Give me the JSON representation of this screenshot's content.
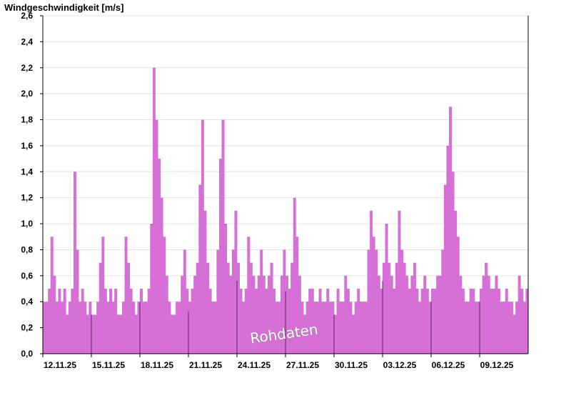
{
  "chart_data": {
    "type": "bar",
    "title": "Windgeschwindigkeit [m/s]",
    "ylabel": "Windgeschwindigkeit [m/s]",
    "ylim": [
      0,
      2.6
    ],
    "y_ticks": [
      {
        "value": 0.0,
        "label": "0,0"
      },
      {
        "value": 0.2,
        "label": "0,2"
      },
      {
        "value": 0.4,
        "label": "0,4"
      },
      {
        "value": 0.6,
        "label": "0,6"
      },
      {
        "value": 0.8,
        "label": "0,8"
      },
      {
        "value": 1.0,
        "label": "1,0"
      },
      {
        "value": 1.2,
        "label": "1,2"
      },
      {
        "value": 1.4,
        "label": "1,4"
      },
      {
        "value": 1.6,
        "label": "1,6"
      },
      {
        "value": 1.8,
        "label": "1,8"
      },
      {
        "value": 2.0,
        "label": "2,0"
      },
      {
        "value": 2.2,
        "label": "2,2"
      },
      {
        "value": 2.4,
        "label": "2,4"
      },
      {
        "value": 2.6,
        "label": "2,6"
      }
    ],
    "x_range_days": [
      0,
      30
    ],
    "x_ticks": [
      "12.11.25",
      "15.11.25",
      "18.11.25",
      "21.11.25",
      "24.11.25",
      "27.11.25",
      "30.11.25",
      "03.12.25",
      "06.12.25",
      "09.12.25"
    ],
    "grid": true,
    "watermark": "Rohdaten",
    "colors": {
      "bars": "#d66fd6",
      "grid": "#e4e4e4",
      "axis": "#000000",
      "day_marker": "#5a2a5a"
    },
    "series_values": [
      0.4,
      0.4,
      0.5,
      0.9,
      0.6,
      0.4,
      0.5,
      0.4,
      0.5,
      0.3,
      0.4,
      0.5,
      1.4,
      0.8,
      0.4,
      0.5,
      0.4,
      0.3,
      0.4,
      0.3,
      0.3,
      0.4,
      0.7,
      0.9,
      0.5,
      0.4,
      0.5,
      0.4,
      0.5,
      0.3,
      0.3,
      0.4,
      0.9,
      0.7,
      0.5,
      0.4,
      0.3,
      0.4,
      0.5,
      0.4,
      0.4,
      0.5,
      1.0,
      2.2,
      1.8,
      1.5,
      1.2,
      0.9,
      0.6,
      0.4,
      0.3,
      0.3,
      0.4,
      0.4,
      0.6,
      0.8,
      0.5,
      0.4,
      0.5,
      0.6,
      0.7,
      1.3,
      1.8,
      1.1,
      0.7,
      0.5,
      0.4,
      0.4,
      0.8,
      1.5,
      1.8,
      1.0,
      0.7,
      0.6,
      0.8,
      1.1,
      0.7,
      0.5,
      0.4,
      0.5,
      0.9,
      0.7,
      0.6,
      0.5,
      0.6,
      0.8,
      0.6,
      0.5,
      0.6,
      0.7,
      0.5,
      0.4,
      0.4,
      0.6,
      0.8,
      0.6,
      0.5,
      0.7,
      1.2,
      0.9,
      0.6,
      0.4,
      0.3,
      0.4,
      0.5,
      0.5,
      0.4,
      0.4,
      0.5,
      0.4,
      0.4,
      0.5,
      0.4,
      0.4,
      0.3,
      0.5,
      0.4,
      0.4,
      0.6,
      0.5,
      0.4,
      0.3,
      0.4,
      0.5,
      0.4,
      0.4,
      0.4,
      0.8,
      1.1,
      0.9,
      0.8,
      0.6,
      0.5,
      0.7,
      1.0,
      0.7,
      0.6,
      0.5,
      0.7,
      1.1,
      0.8,
      0.7,
      0.6,
      0.5,
      0.6,
      0.7,
      0.5,
      0.4,
      0.5,
      0.6,
      0.5,
      0.4,
      0.5,
      0.5,
      0.6,
      0.6,
      0.8,
      1.3,
      1.6,
      1.9,
      1.4,
      1.1,
      0.9,
      0.6,
      0.5,
      0.4,
      0.4,
      0.5,
      0.5,
      0.4,
      0.4,
      0.5,
      0.6,
      0.7,
      0.6,
      0.5,
      0.5,
      0.6,
      0.5,
      0.4,
      0.4,
      0.5,
      0.4,
      0.4,
      0.3,
      0.4,
      0.6,
      0.5,
      0.4,
      0.5
    ]
  }
}
